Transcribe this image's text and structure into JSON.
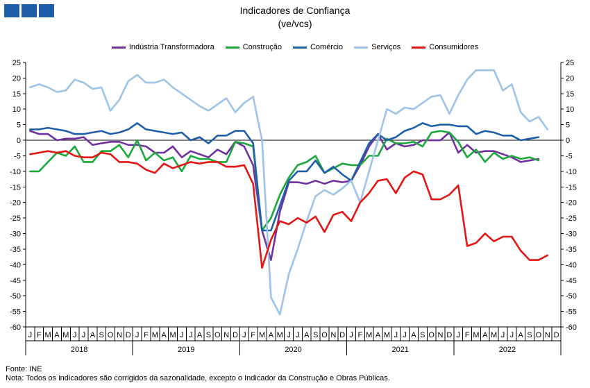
{
  "header": {
    "title": "Indicadores de Confiança",
    "subtitle": "(ve/vcs)"
  },
  "colors": {
    "industria": "#7030a0",
    "construcao": "#1aa83a",
    "comercio": "#1f5ea8",
    "servicos": "#9dc3e6",
    "consumidores": "#e31515",
    "logo": "#1f5ea8"
  },
  "footer": {
    "source": "Fonte: INE",
    "note": "Nota: Todos os indicadores são corrigidos da sazonalidade,  excepto o Indicador da Construção e Obras Públicas."
  },
  "chart_data": {
    "type": "line",
    "ylim": [
      -60,
      25
    ],
    "yticks": [
      25,
      20,
      15,
      10,
      5,
      0,
      -5,
      -10,
      -15,
      -20,
      -25,
      -30,
      -35,
      -40,
      -45,
      -50,
      -55,
      -60
    ],
    "grid": false,
    "legend_position": "top-center",
    "month_labels": [
      "J",
      "F",
      "M",
      "A",
      "M",
      "J",
      "J",
      "A",
      "S",
      "O",
      "N",
      "D"
    ],
    "years": [
      "2018",
      "2019",
      "2020",
      "2021",
      "2022"
    ],
    "series": [
      {
        "name": "Indústria Transformadora",
        "color_key": "industria",
        "values": [
          3,
          2,
          2,
          0,
          0.5,
          0.5,
          1,
          -1.5,
          -1,
          -0.5,
          -0.5,
          -1.5,
          -1.5,
          -2,
          -4,
          -4,
          -2,
          -5.5,
          -3.5,
          -4.5,
          -5.5,
          -3,
          -4.5,
          -0.5,
          -2,
          -8,
          -29,
          -38.5,
          -23,
          -13.5,
          -13.5,
          -14,
          -13,
          -14,
          -13,
          -13.5,
          -13,
          -8,
          -2,
          2,
          -3,
          -1,
          -2,
          -1.5,
          0,
          0,
          0,
          2.5,
          -4,
          -1.5,
          -4,
          -3.5,
          -3.5,
          -4.5,
          -5.5,
          -7,
          -6.5,
          -6
        ]
      },
      {
        "name": "Construção",
        "color_key": "construcao",
        "values": [
          -10,
          -10,
          -7,
          -4,
          -5,
          -2,
          -7,
          -7,
          -3.5,
          -3.5,
          -1.5,
          -5.5,
          0,
          -6.5,
          -4,
          -6.5,
          -5.5,
          -10,
          -5,
          -6,
          -6,
          -7,
          -7,
          -0.5,
          -1,
          -2,
          -29,
          -25,
          -17.5,
          -12,
          -8,
          -7,
          -5,
          -10.5,
          -9,
          -7.5,
          -8,
          -8,
          -5,
          -5,
          0.5,
          -1,
          -1,
          -0.5,
          -2,
          2.5,
          3,
          2.5,
          -0.5,
          -5.5,
          -3,
          -7,
          -4,
          -6,
          -5,
          -6,
          -5.5,
          -6.5
        ]
      },
      {
        "name": "Comércio",
        "color_key": "comercio",
        "values": [
          3.5,
          3.5,
          4,
          3.5,
          3,
          2,
          2,
          2.5,
          3,
          2,
          2.5,
          3.5,
          5.5,
          3.5,
          3,
          2.5,
          2,
          2.5,
          0,
          1,
          -1,
          1.5,
          1.5,
          3,
          3,
          -1,
          -29,
          -29,
          -21,
          -13,
          -10,
          -10,
          -6.5,
          -10.5,
          -8.5,
          -11,
          -13,
          -7,
          -1,
          2,
          0,
          1,
          3,
          4,
          5.5,
          4.5,
          5,
          5,
          4.5,
          4.5,
          2,
          3,
          2.5,
          1.5,
          1.5,
          0,
          0.5,
          1
        ]
      },
      {
        "name": "Serviços",
        "color_key": "servicos",
        "values": [
          17,
          18,
          17,
          15.5,
          16,
          19.5,
          18.5,
          16.5,
          17,
          9.5,
          13,
          19,
          21,
          18.5,
          18.5,
          19.5,
          17,
          15,
          13,
          11,
          9.5,
          11.5,
          13.5,
          9,
          12,
          14,
          0,
          -50.5,
          -56,
          -43,
          -35,
          -26,
          -18,
          -16,
          -17.5,
          -15.5,
          -13,
          -20,
          -10,
          0,
          10,
          8.5,
          10.5,
          10,
          12,
          14,
          14.5,
          8.5,
          14.5,
          19.5,
          22.5,
          22.5,
          22.5,
          16,
          18,
          9,
          6,
          7.5,
          3.5
        ]
      },
      {
        "name": "Consumidores",
        "color_key": "consumidores",
        "values": [
          -4.5,
          -4,
          -3.5,
          -4,
          -3.5,
          -5,
          -5.5,
          -5.5,
          -4,
          -4.5,
          -7,
          -7,
          -7.5,
          -9.5,
          -10.5,
          -7.5,
          -9,
          -8,
          -7,
          -7.5,
          -7,
          -7,
          -8.5,
          -8.5,
          -8,
          -14,
          -41,
          -32,
          -26,
          -27,
          -25,
          -26.5,
          -24.5,
          -29.5,
          -24,
          -23,
          -26,
          -20,
          -17,
          -13,
          -12.5,
          -17,
          -12,
          -10,
          -11,
          -19,
          -19,
          -17.5,
          -14.5,
          -34,
          -33,
          -30,
          -32.5,
          -31,
          -31,
          -35.5,
          -38.5,
          -38.5,
          -37
        ]
      }
    ]
  }
}
